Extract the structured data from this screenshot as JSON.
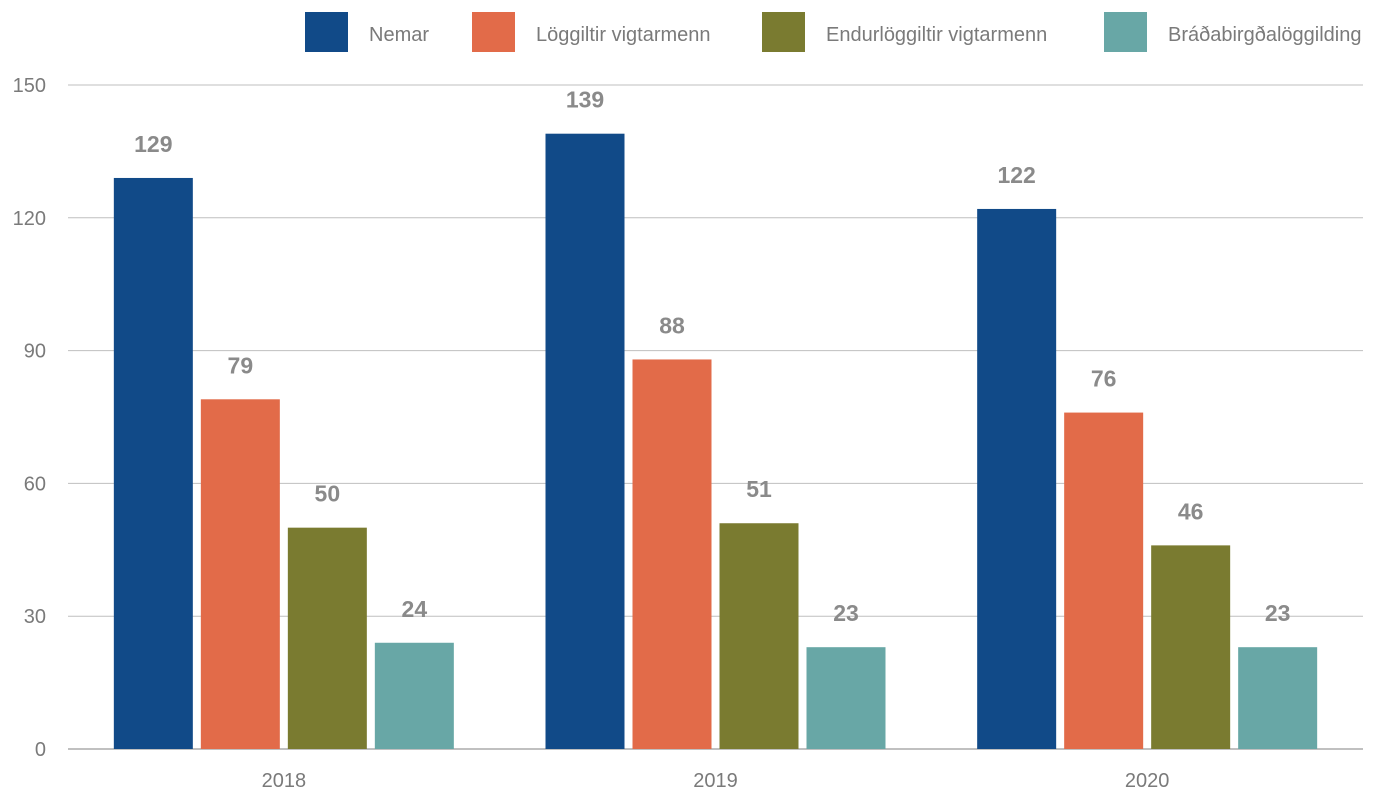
{
  "chart_data": {
    "type": "bar",
    "categories": [
      "2018",
      "2019",
      "2020"
    ],
    "series": [
      {
        "name": "Nemar",
        "color": "#114a88",
        "values": [
          129,
          139,
          122
        ]
      },
      {
        "name": "Löggiltir vigtarmenn",
        "color": "#e26b49",
        "values": [
          79,
          88,
          76
        ]
      },
      {
        "name": "Endurlöggiltir vigtarmenn",
        "color": "#7a7b30",
        "values": [
          50,
          51,
          46
        ]
      },
      {
        "name": "Bráðabirgðalöggilding",
        "color": "#68a7a6",
        "values": [
          24,
          23,
          23
        ]
      }
    ],
    "yticks": [
      "0",
      "30",
      "60",
      "90",
      "120",
      "150"
    ],
    "ylim": [
      0,
      150
    ],
    "grid": true,
    "legend_position": "top-right"
  }
}
